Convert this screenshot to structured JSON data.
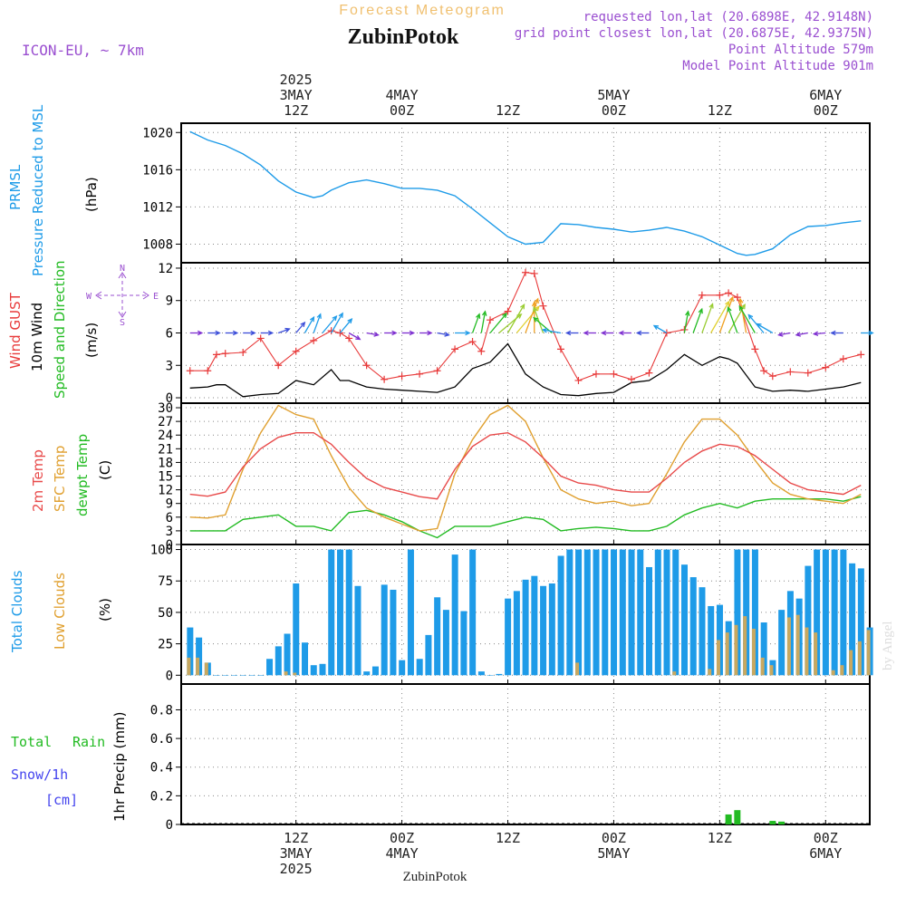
{
  "header": {
    "title": "Forecast Meteogram",
    "location": "ZubinPotok",
    "model": "ICON-EU, ~ 7km",
    "requested": "requested lon,lat (20.6898E, 42.9148N)",
    "closest": "grid point closest lon,lat (20.6875E, 42.9375N)",
    "point_alt": "Point Altitude 579m",
    "model_alt": "Model Point Altitude 901m",
    "footer": "ZubinPotok",
    "watermark": "by Angel"
  },
  "colors": {
    "pressure": "#1e9be8",
    "gust": "#e83a3a",
    "wind": "#000000",
    "temp": "#e84a4a",
    "sfc": "#e0a030",
    "dewpt": "#22bb22",
    "total_clouds": "#1e9be8",
    "low_clouds": "#c8a860",
    "rain": "#22bb22",
    "snow": "#4444ee",
    "header_purple": "#9a4fd0",
    "title_gold": "#f0c070"
  },
  "time_axis": {
    "top_labels": [
      {
        "hour": 12,
        "lines": [
          "2025",
          "3MAY",
          "12Z"
        ]
      },
      {
        "hour": 24,
        "lines": [
          "4MAY",
          "00Z"
        ]
      },
      {
        "hour": 36,
        "lines": [
          "12Z"
        ]
      },
      {
        "hour": 48,
        "lines": [
          "5MAY",
          "00Z"
        ]
      },
      {
        "hour": 60,
        "lines": [
          "12Z"
        ]
      },
      {
        "hour": 72,
        "lines": [
          "6MAY",
          "00Z"
        ]
      }
    ],
    "bottom_labels": [
      {
        "hour": 12,
        "lines": [
          "12Z",
          "3MAY",
          "2025"
        ]
      },
      {
        "hour": 24,
        "lines": [
          "00Z",
          "4MAY"
        ]
      },
      {
        "hour": 36,
        "lines": [
          "12Z"
        ]
      },
      {
        "hour": 48,
        "lines": [
          "00Z",
          "5MAY"
        ]
      },
      {
        "hour": 60,
        "lines": [
          "12Z"
        ]
      },
      {
        "hour": 72,
        "lines": [
          "00Z",
          "6MAY"
        ]
      }
    ]
  },
  "panel_labels": {
    "pressure": {
      "l1": "PRMSL",
      "l2": "Pressure Reduced to MSL",
      "unit": "(hPa)"
    },
    "wind": {
      "l1": "Wind GUST",
      "l2": "10m Wind",
      "l3": "Speed and Direction",
      "unit": "(m/s)",
      "compass_n": "N",
      "compass_s": "S",
      "compass_w": "W",
      "compass_e": "E"
    },
    "temp": {
      "l1": "2m Temp",
      "l2": "SFC Temp",
      "l3": "dewpt Temp",
      "unit": "(C)"
    },
    "clouds": {
      "l1": "Total Clouds",
      "l2": "Low Clouds",
      "unit": "(%)"
    },
    "precip": {
      "total": "Total",
      "rain": "Rain",
      "snow": "Snow/1h",
      "cm": "[cm]",
      "unit": "1hr Precip (mm)"
    }
  },
  "chart_data": [
    {
      "type": "line",
      "id": "pressure",
      "title": "PRMSL Pressure Reduced to MSL",
      "x_unit": "hours from 3MAY 00Z",
      "ylabel": "(hPa)",
      "ylim": [
        1006,
        1021
      ],
      "yticks": [
        1008,
        1012,
        1016,
        1020
      ],
      "x": [
        0,
        2,
        4,
        6,
        8,
        10,
        12,
        14,
        15,
        16,
        18,
        20,
        22,
        24,
        26,
        28,
        30,
        32,
        34,
        36,
        38,
        40,
        41,
        42,
        44,
        46,
        48,
        50,
        52,
        54,
        56,
        58,
        60,
        62,
        63,
        64,
        66,
        68,
        70,
        72,
        74,
        76
      ],
      "series": [
        {
          "name": "PRMSL",
          "values": [
            1020.1,
            1019.2,
            1018.6,
            1017.7,
            1016.5,
            1014.8,
            1013.6,
            1013.0,
            1013.2,
            1013.8,
            1014.6,
            1014.9,
            1014.5,
            1014.0,
            1014.0,
            1013.8,
            1013.2,
            1011.8,
            1010.3,
            1008.8,
            1008.0,
            1008.2,
            1009.2,
            1010.2,
            1010.1,
            1009.8,
            1009.6,
            1009.3,
            1009.5,
            1009.8,
            1009.4,
            1008.8,
            1007.9,
            1007.0,
            1006.8,
            1006.9,
            1007.5,
            1009.0,
            1009.9,
            1010.0,
            1010.3,
            1010.5
          ]
        }
      ]
    },
    {
      "type": "line",
      "id": "wind",
      "title": "Wind GUST / 10m Wind Speed and Direction",
      "ylabel": "(m/s)",
      "ylim": [
        -0.5,
        12.5
      ],
      "yticks": [
        0,
        3,
        6,
        9,
        12
      ],
      "x": [
        0,
        2,
        3,
        4,
        6,
        8,
        10,
        12,
        14,
        16,
        17,
        18,
        20,
        22,
        24,
        26,
        28,
        30,
        32,
        33,
        34,
        36,
        38,
        39,
        40,
        42,
        44,
        46,
        48,
        50,
        52,
        54,
        56,
        58,
        60,
        61,
        62,
        64,
        65,
        66,
        68,
        70,
        72,
        74,
        76
      ],
      "series": [
        {
          "name": "Wind GUST",
          "values": [
            2.5,
            2.5,
            4.0,
            4.1,
            4.2,
            5.5,
            3.0,
            4.3,
            5.3,
            6.2,
            6.0,
            5.5,
            3.0,
            1.7,
            2.0,
            2.2,
            2.5,
            4.5,
            5.2,
            4.3,
            7.2,
            8.0,
            11.6,
            11.5,
            8.5,
            4.5,
            1.6,
            2.2,
            2.2,
            1.7,
            2.3,
            6.0,
            6.3,
            9.5,
            9.5,
            9.7,
            9.3,
            4.5,
            2.5,
            2.0,
            2.4,
            2.3,
            2.8,
            3.6,
            4.0
          ]
        },
        {
          "name": "10m Wind",
          "values": [
            0.9,
            1.0,
            1.2,
            1.2,
            0.1,
            0.3,
            0.4,
            1.6,
            1.2,
            2.6,
            1.6,
            1.6,
            1.0,
            0.8,
            0.7,
            0.6,
            0.5,
            1.0,
            2.7,
            3.0,
            3.3,
            5.0,
            2.2,
            1.6,
            1.0,
            0.3,
            0.2,
            0.4,
            0.5,
            1.4,
            1.6,
            2.6,
            4.0,
            3.0,
            3.8,
            3.6,
            3.2,
            1.0,
            0.8,
            0.6,
            0.7,
            0.6,
            0.8,
            1.0,
            1.4
          ]
        }
      ],
      "barbs": {
        "x": [
          0,
          2,
          4,
          6,
          8,
          10,
          12,
          13,
          14,
          15,
          16,
          17,
          18,
          20,
          22,
          24,
          26,
          28,
          30,
          32,
          33,
          34,
          35,
          36,
          37,
          38,
          39,
          40,
          41,
          42,
          44,
          46,
          48,
          50,
          52,
          54,
          56,
          57,
          58,
          59,
          60,
          61,
          62,
          63,
          64,
          65,
          66,
          68,
          70,
          72,
          74,
          76
        ],
        "dir_deg": [
          270,
          270,
          270,
          270,
          270,
          250,
          220,
          210,
          200,
          220,
          210,
          220,
          300,
          280,
          270,
          270,
          270,
          280,
          270,
          200,
          190,
          220,
          230,
          210,
          220,
          200,
          180,
          160,
          130,
          100,
          90,
          90,
          90,
          90,
          90,
          120,
          190,
          200,
          200,
          210,
          200,
          210,
          160,
          170,
          150,
          140,
          120,
          80,
          80,
          85,
          90,
          270
        ],
        "color": [
          "#7e2fd0",
          "#3b4dd8",
          "#3b4dd8",
          "#3b4dd8",
          "#3b4dd8",
          "#3b4dd8",
          "#3b4dd8",
          "#1e9be8",
          "#1e9be8",
          "#1e9be8",
          "#1e9be8",
          "#1e9be8",
          "#7e2fd0",
          "#7e2fd0",
          "#7e2fd0",
          "#7e2fd0",
          "#7e2fd0",
          "#3b4dd8",
          "#1e9be8",
          "#22bb22",
          "#22bb22",
          "#22bb22",
          "#9acd32",
          "#9acd32",
          "#e0d030",
          "#f0a020",
          "#f0a020",
          "#9acd32",
          "#22bb22",
          "#1e9be8",
          "#3b4dd8",
          "#7e2fd0",
          "#7e2fd0",
          "#7e2fd0",
          "#3b4dd8",
          "#1e9be8",
          "#22bb22",
          "#22bb22",
          "#9acd32",
          "#e0d030",
          "#f0a020",
          "#9acd32",
          "#22bb22",
          "#f0a020",
          "#22bb22",
          "#1e9be8",
          "#1e9be8",
          "#7e2fd0",
          "#7e2fd0",
          "#7e2fd0",
          "#3b4dd8",
          "#1e9be8"
        ],
        "len_ms": [
          0.3,
          0.3,
          0.3,
          0.3,
          0.3,
          0.3,
          0.5,
          1.0,
          1.2,
          1.4,
          1.5,
          1.0,
          0.4,
          0.3,
          0.3,
          0.3,
          0.3,
          0.3,
          0.6,
          1.2,
          1.4,
          1.8,
          2.2,
          2.6,
          2.8,
          3.0,
          2.4,
          2.0,
          1.6,
          1.0,
          0.3,
          0.3,
          0.3,
          0.3,
          0.3,
          0.6,
          1.4,
          1.8,
          2.4,
          3.0,
          3.2,
          2.6,
          2.0,
          2.8,
          2.4,
          1.6,
          1.0,
          0.3,
          0.3,
          0.3,
          0.3,
          0.3
        ]
      }
    },
    {
      "type": "line",
      "id": "temp",
      "title": "2m Temp / SFC Temp / dewpt Temp",
      "ylabel": "(C)",
      "ylim": [
        0,
        31
      ],
      "yticks": [
        0,
        3,
        6,
        9,
        12,
        15,
        18,
        21,
        24,
        27,
        30
      ],
      "x": [
        0,
        2,
        4,
        6,
        8,
        10,
        12,
        14,
        16,
        18,
        20,
        22,
        24,
        26,
        28,
        30,
        32,
        34,
        36,
        38,
        40,
        42,
        44,
        46,
        48,
        50,
        52,
        54,
        56,
        58,
        60,
        62,
        64,
        66,
        68,
        70,
        72,
        74,
        76
      ],
      "series": [
        {
          "name": "2m Temp",
          "values": [
            11.0,
            10.6,
            11.5,
            17.0,
            21.0,
            23.5,
            24.5,
            24.5,
            22.0,
            18.0,
            14.5,
            12.5,
            11.5,
            10.5,
            10.0,
            16.5,
            21.5,
            24.0,
            24.5,
            22.5,
            19.0,
            15.0,
            13.5,
            13.0,
            12.0,
            11.5,
            11.5,
            14.5,
            18.0,
            20.5,
            22.0,
            21.5,
            19.5,
            16.5,
            13.5,
            12.0,
            11.5,
            11.0,
            13.0
          ]
        },
        {
          "name": "SFC Temp",
          "values": [
            6.0,
            5.8,
            6.5,
            16.5,
            24.5,
            30.5,
            28.5,
            27.5,
            19.5,
            12.5,
            8.0,
            6.0,
            4.5,
            3.0,
            3.5,
            15.5,
            23.0,
            28.5,
            30.5,
            27.0,
            19.0,
            12.0,
            10.0,
            9.0,
            9.5,
            8.5,
            9.0,
            15.5,
            22.5,
            27.5,
            27.5,
            24.0,
            18.5,
            13.5,
            11.0,
            10.0,
            9.5,
            9.0,
            11.0
          ]
        },
        {
          "name": "dewpt Temp",
          "values": [
            3.0,
            3.0,
            3.0,
            5.5,
            6.0,
            6.5,
            4.0,
            4.0,
            3.0,
            7.0,
            7.5,
            6.5,
            5.0,
            3.0,
            1.5,
            4.0,
            4.0,
            4.0,
            5.0,
            6.0,
            5.5,
            3.0,
            3.5,
            3.8,
            3.5,
            3.0,
            3.0,
            4.0,
            6.5,
            8.0,
            9.0,
            8.0,
            9.5,
            10.0,
            10.0,
            10.0,
            10.0,
            9.5,
            10.5
          ]
        }
      ]
    },
    {
      "type": "bar",
      "id": "clouds",
      "title": "Total Clouds / Low Clouds",
      "ylabel": "(%)",
      "ylim": [
        -7,
        104
      ],
      "yticks": [
        0,
        25,
        50,
        75,
        100
      ],
      "x_start": 0,
      "x_step": 1,
      "series": [
        {
          "name": "Total Clouds",
          "values": [
            38,
            30,
            10,
            0,
            0,
            0,
            0,
            0,
            0,
            13,
            23,
            33,
            73,
            26,
            8,
            9,
            100,
            100,
            100,
            71,
            3,
            7,
            72,
            68,
            12,
            100,
            13,
            32,
            62,
            52,
            96,
            51,
            100,
            3,
            0,
            1,
            61,
            67,
            76,
            79,
            71,
            73,
            95,
            100,
            100,
            100,
            100,
            100,
            100,
            100,
            100,
            100,
            86,
            100,
            100,
            100,
            88,
            78,
            70,
            55,
            56,
            43,
            100,
            100,
            100,
            42,
            12,
            52,
            67,
            61,
            87,
            100,
            100,
            100,
            100,
            89,
            85,
            38
          ]
        },
        {
          "name": "Low Clouds",
          "values": [
            14,
            14,
            10,
            0,
            0,
            0,
            0,
            0,
            0,
            0,
            0,
            3,
            2,
            0,
            0,
            0,
            0,
            0,
            0,
            0,
            0,
            0,
            0,
            0,
            0,
            0,
            0,
            0,
            0,
            0,
            0,
            0,
            0,
            0,
            0,
            0,
            0,
            0,
            0,
            0,
            0,
            0,
            0,
            0,
            10,
            0,
            0,
            0,
            0,
            0,
            0,
            0,
            0,
            0,
            0,
            3,
            0,
            0,
            0,
            5,
            28,
            34,
            40,
            47,
            37,
            14,
            8,
            0,
            46,
            48,
            38,
            34,
            0,
            4,
            8,
            20,
            27,
            36
          ]
        }
      ]
    },
    {
      "type": "bar",
      "id": "precip",
      "title": "1hr Precip (mm)",
      "ylabel": "1hr Precip (mm)",
      "ylim": [
        0,
        0.98
      ],
      "yticks": [
        0,
        0.2,
        0.4,
        0.6,
        0.8
      ],
      "tick_labels": [
        "0",
        "0.2",
        "0.4",
        "0.6",
        "0.8"
      ],
      "x": [
        61,
        62,
        66,
        67
      ],
      "series": [
        {
          "name": "Total Rain",
          "values": [
            0.07,
            0.1,
            0.025,
            0.02
          ]
        }
      ]
    }
  ]
}
